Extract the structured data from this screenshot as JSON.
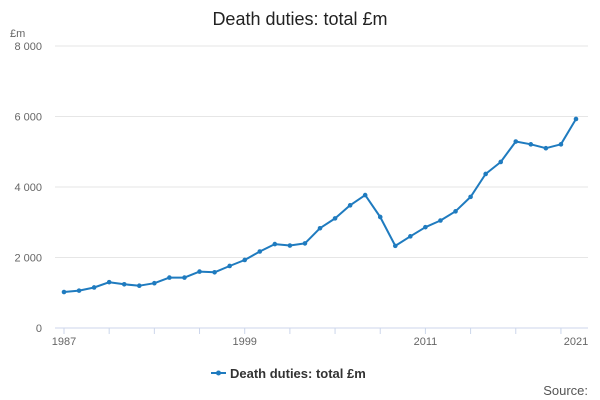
{
  "chart_data": {
    "type": "line",
    "title": "Death duties: total £m",
    "ylabel": "£m",
    "ylim": [
      0,
      8000
    ],
    "y_ticks": [
      0,
      2000,
      4000,
      6000,
      8000
    ],
    "y_tick_labels": [
      "0",
      "2 000",
      "4 000",
      "6 000",
      "8 000"
    ],
    "xlim": [
      1987,
      2021
    ],
    "x_tick_labels": [
      1987,
      1999,
      2011,
      2021
    ],
    "x_minor_ticks": [
      1987,
      1990,
      1993,
      1996,
      1999,
      2002,
      2005,
      2008,
      2011,
      2014,
      2017,
      2020
    ],
    "grid": true,
    "legend_position": "bottom",
    "series": [
      {
        "name": "Death duties: total £m",
        "color": "#1f7bbf",
        "x": [
          1987,
          1988,
          1989,
          1990,
          1991,
          1992,
          1993,
          1994,
          1995,
          1996,
          1997,
          1998,
          1999,
          2000,
          2001,
          2002,
          2003,
          2004,
          2005,
          2006,
          2007,
          2008,
          2009,
          2010,
          2011,
          2012,
          2013,
          2014,
          2015,
          2016,
          2017,
          2018,
          2019,
          2020,
          2021
        ],
        "values": [
          1020,
          1060,
          1150,
          1300,
          1240,
          1200,
          1270,
          1430,
          1430,
          1600,
          1580,
          1760,
          1930,
          2170,
          2380,
          2340,
          2400,
          2830,
          3110,
          3480,
          3770,
          3150,
          2330,
          2600,
          2860,
          3050,
          3310,
          3720,
          4370,
          4710,
          5290,
          5210,
          5100,
          5210,
          5930
        ]
      }
    ]
  },
  "legend": {
    "label": "Death duties: total £m"
  },
  "source": {
    "label": "Source:"
  }
}
